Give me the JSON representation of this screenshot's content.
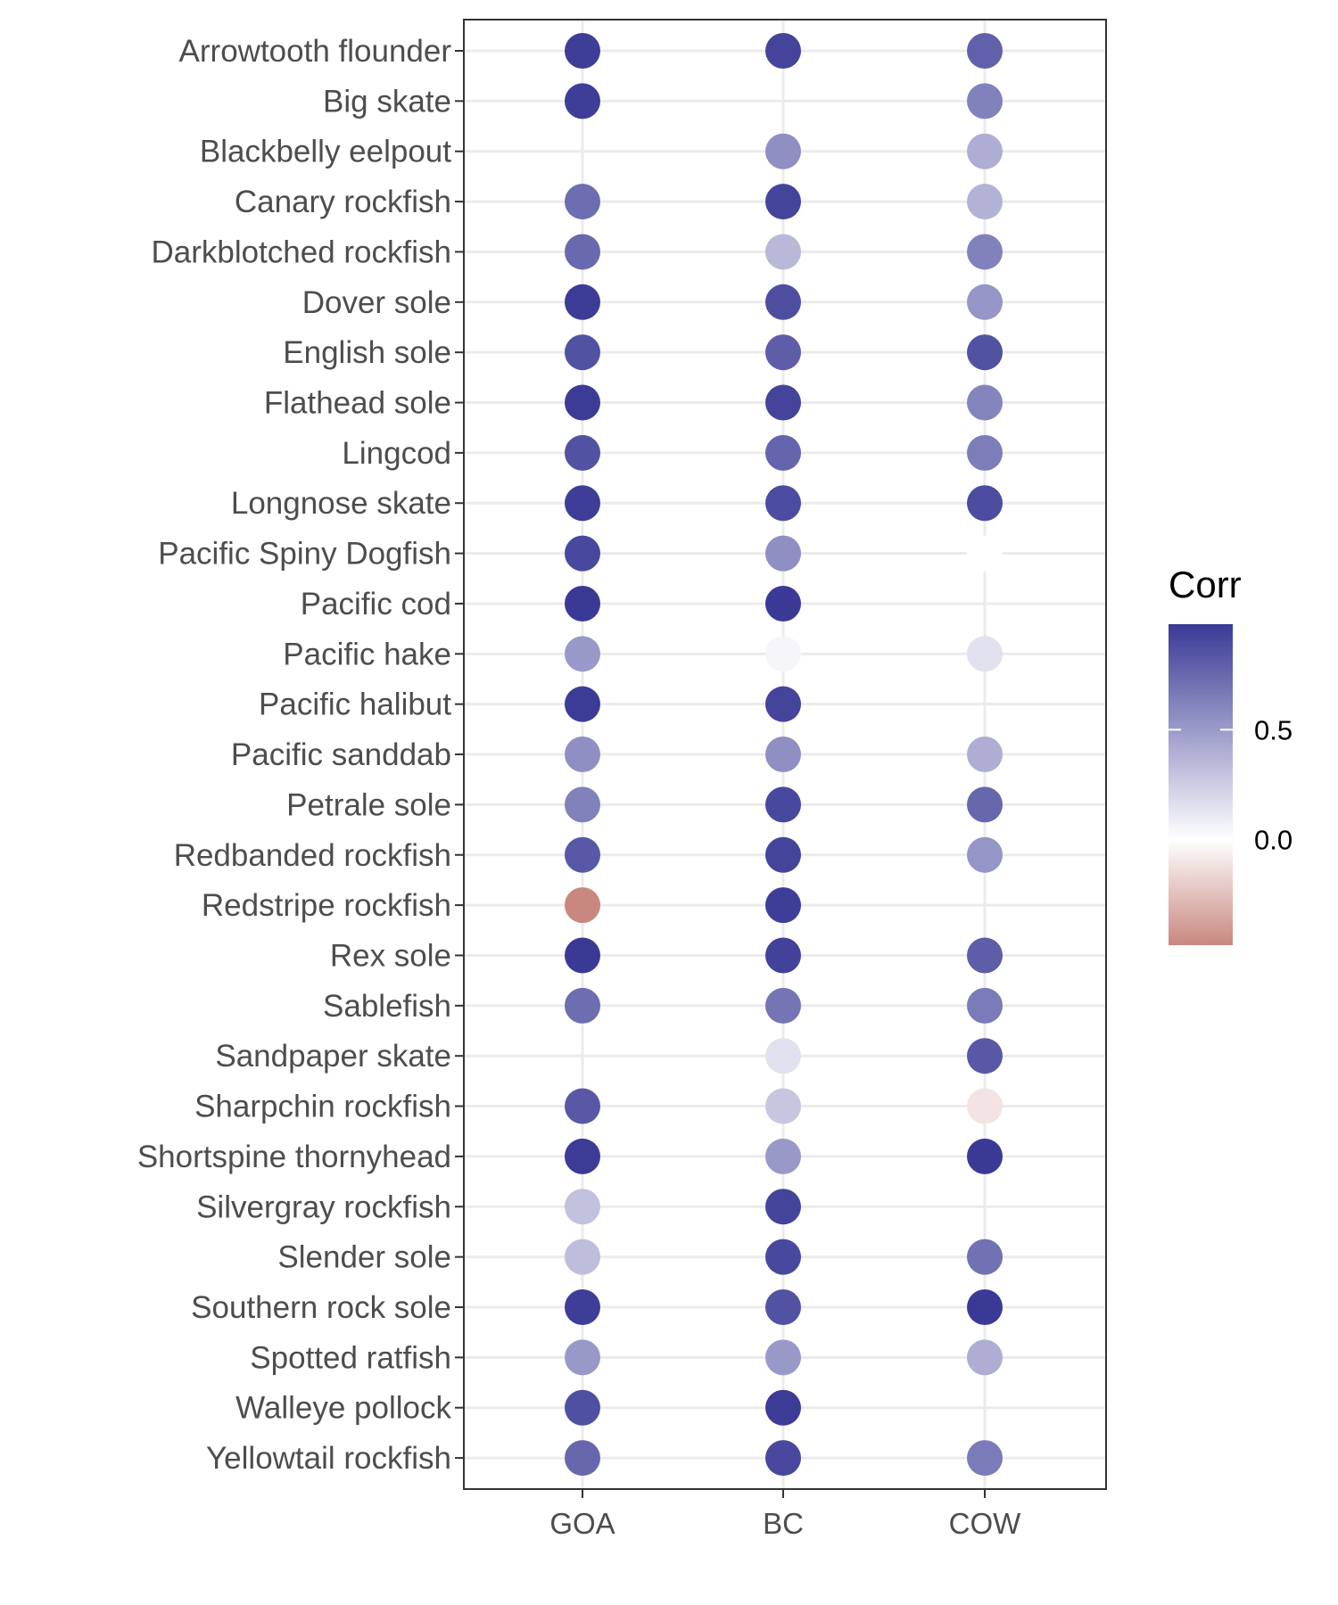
{
  "chart_data": {
    "type": "scatter",
    "x_categories": [
      "GOA",
      "BC",
      "COW"
    ],
    "y_categories": [
      "Arrowtooth flounder",
      "Big skate",
      "Blackbelly eelpout",
      "Canary rockfish",
      "Darkblotched rockfish",
      "Dover sole",
      "English sole",
      "Flathead sole",
      "Lingcod",
      "Longnose skate",
      "Pacific Spiny Dogfish",
      "Pacific cod",
      "Pacific hake",
      "Pacific halibut",
      "Pacific sanddab",
      "Petrale sole",
      "Redbanded rockfish",
      "Redstripe rockfish",
      "Rex sole",
      "Sablefish",
      "Sandpaper skate",
      "Sharpchin rockfish",
      "Shortspine thornyhead",
      "Silvergray rockfish",
      "Slender sole",
      "Southern rock sole",
      "Spotted ratfish",
      "Walleye pollock",
      "Yellowtail rockfish"
    ],
    "values": [
      [
        0.95,
        0.92,
        0.78
      ],
      [
        0.95,
        null,
        0.62
      ],
      [
        null,
        0.55,
        0.4
      ],
      [
        0.72,
        0.92,
        0.38
      ],
      [
        0.74,
        0.35,
        0.62
      ],
      [
        0.96,
        0.87,
        0.52
      ],
      [
        0.85,
        0.8,
        0.85
      ],
      [
        0.96,
        0.92,
        0.6
      ],
      [
        0.85,
        0.76,
        0.64
      ],
      [
        0.95,
        0.88,
        0.88
      ],
      [
        0.9,
        0.55,
        0.0
      ],
      [
        0.97,
        0.97,
        null
      ],
      [
        0.5,
        0.05,
        0.15
      ],
      [
        0.96,
        0.92,
        null
      ],
      [
        0.55,
        0.55,
        0.4
      ],
      [
        0.62,
        0.9,
        0.75
      ],
      [
        0.82,
        0.92,
        0.52
      ],
      [
        -0.45,
        0.95,
        null
      ],
      [
        0.97,
        0.93,
        0.8
      ],
      [
        0.72,
        0.68,
        0.65
      ],
      [
        null,
        0.15,
        0.82
      ],
      [
        0.82,
        0.28,
        -0.1
      ],
      [
        0.96,
        0.5,
        0.97
      ],
      [
        0.3,
        0.92,
        null
      ],
      [
        0.32,
        0.9,
        0.7
      ],
      [
        0.95,
        0.85,
        0.97
      ],
      [
        0.5,
        0.5,
        0.4
      ],
      [
        0.86,
        0.96,
        null
      ],
      [
        0.75,
        0.9,
        0.65
      ]
    ],
    "legend": {
      "title": "Corr",
      "ticks": [
        "0.5",
        "0.0"
      ],
      "tick_values": [
        0.5,
        0.0
      ],
      "range": [
        -0.48,
        0.98
      ],
      "placement": "right"
    },
    "colors": {
      "high": "#3a3a96",
      "mid": "#ffffff",
      "low": "#c8877f"
    },
    "grid": true
  }
}
